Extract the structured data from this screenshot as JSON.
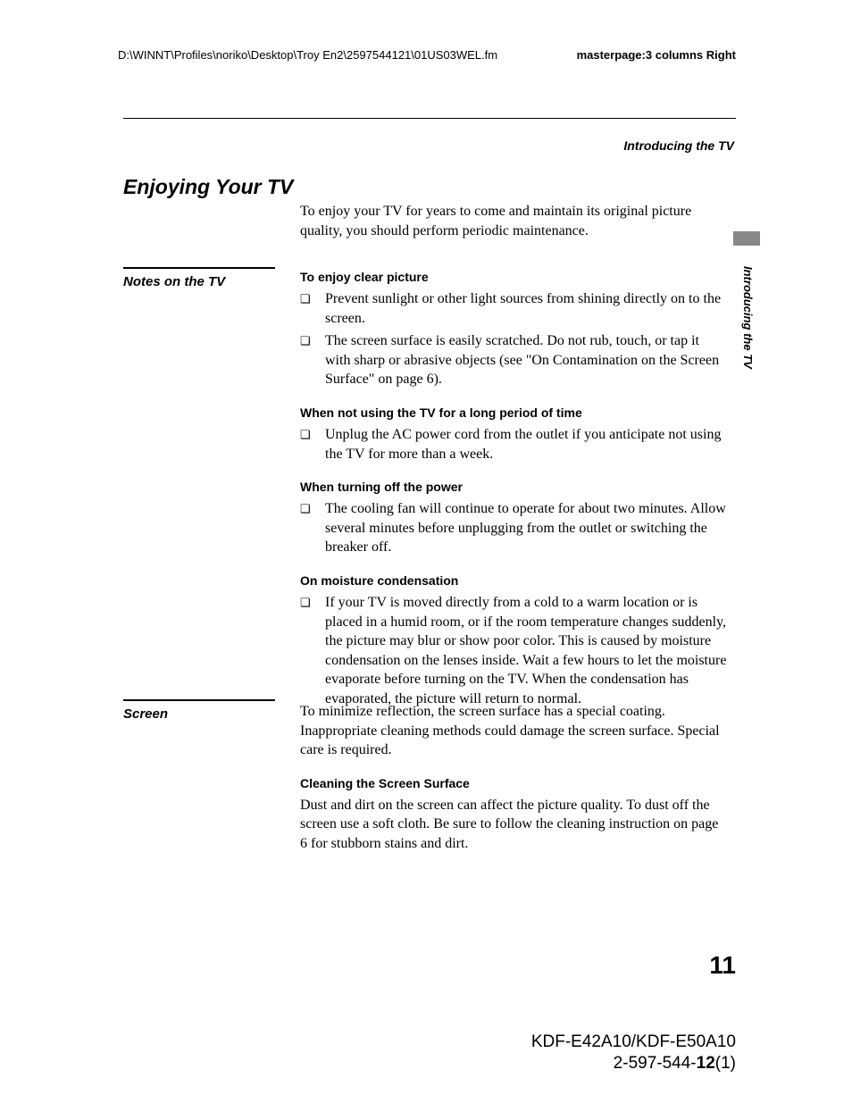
{
  "header": {
    "path": "D:\\WINNT\\Profiles\\noriko\\Desktop\\Troy En2\\2597544121\\01US03WEL.fm",
    "master": "masterpage:3 columns Right"
  },
  "section_label_right": "Introducing the TV",
  "vertical_tab_label": "Introducing the TV",
  "title": "Enjoying Your TV",
  "intro": "To enjoy your TV for years to come and maintain its original picture quality, you should perform periodic maintenance.",
  "notes_section": {
    "heading": "Notes on the TV",
    "groups": [
      {
        "sub": "To enjoy clear picture",
        "items": [
          "Prevent sunlight or other light sources from shining directly on to the screen.",
          "The screen surface is easily scratched. Do not rub, touch, or tap it with sharp or abrasive objects (see \"On Contamination on the Screen Surface\" on page 6)."
        ]
      },
      {
        "sub": "When not using the TV for a long period of time",
        "items": [
          "Unplug the AC power cord from the outlet if you anticipate not using the TV for more than a week."
        ]
      },
      {
        "sub": "When turning off the power",
        "items": [
          "The cooling fan will continue to operate for about two minutes. Allow several minutes before unplugging from the outlet or switching the breaker off."
        ]
      },
      {
        "sub": "On moisture condensation",
        "items": [
          "If your TV is moved directly from a cold to a warm location or is placed in a humid room, or if the room temperature changes suddenly, the picture may blur or show poor color.  This is caused by moisture condensation on the lenses inside. Wait a few hours to let the moisture evaporate before turning on the TV. When the condensation has evaporated, the picture will return to normal."
        ]
      }
    ]
  },
  "screen_section": {
    "heading": "Screen",
    "intro": "To minimize reflection, the screen surface has a special coating. Inappropriate cleaning methods could damage the screen surface. Special care is required.",
    "sub": "Cleaning the Screen Surface",
    "body": "Dust and dirt on the screen can affect the picture quality. To dust off the screen use a soft cloth. Be sure to follow the cleaning instruction on page 6 for stubborn stains and dirt."
  },
  "page_number": "11",
  "footer": {
    "model": "KDF-E42A10/KDF-E50A10",
    "doc_prefix": "2-597-544-",
    "doc_bold": "12",
    "doc_suffix": "(1)"
  }
}
